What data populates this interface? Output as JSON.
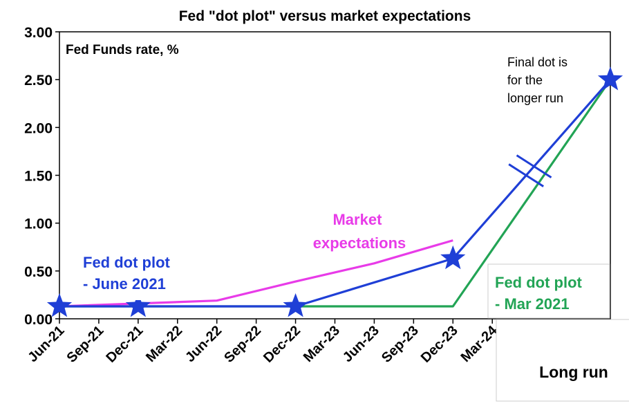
{
  "chart_data": {
    "type": "line",
    "title": "Fed \"dot plot\" versus market expectations",
    "ylabel": "Fed Funds rate, %",
    "xlabel": "",
    "ylim": [
      0,
      3
    ],
    "yticks": [
      "0.00",
      "0.50",
      "1.00",
      "1.50",
      "2.00",
      "2.50",
      "3.00"
    ],
    "categories": [
      "Jun-21",
      "Sep-21",
      "Dec-21",
      "Mar-22",
      "Jun-22",
      "Sep-22",
      "Dec-22",
      "Mar-23",
      "Jun-23",
      "Sep-23",
      "Dec-23",
      "Mar-24",
      "",
      "",
      "Long run"
    ],
    "long_run_label": "Long run",
    "grid": false,
    "series": [
      {
        "name": "Fed dot plot - June 2021",
        "label_lines": [
          "Fed dot plot",
          "- June 2021"
        ],
        "color": "#1f3fd6",
        "x": [
          0,
          2,
          6,
          10,
          14
        ],
        "values": [
          0.13,
          0.13,
          0.13,
          0.63,
          2.5
        ],
        "star_markers": true
      },
      {
        "name": "Fed dot plot - Mar 2021",
        "label_lines": [
          "Fed dot plot",
          "- Mar 2021"
        ],
        "color": "#22a455",
        "x": [
          0,
          10,
          14
        ],
        "values": [
          0.13,
          0.13,
          2.5
        ],
        "star_markers": false
      },
      {
        "name": "Market expectations",
        "label_lines": [
          "Market",
          "expectations"
        ],
        "color": "#e83be8",
        "x": [
          0,
          4,
          6,
          8,
          10
        ],
        "values": [
          0.13,
          0.19,
          0.39,
          0.58,
          0.82
        ],
        "star_markers": false
      }
    ],
    "annotations": [
      {
        "text_lines": [
          "Final dot is",
          "for the",
          "longer run"
        ]
      }
    ],
    "axis_break": {
      "color": "#1f3fd6"
    }
  }
}
